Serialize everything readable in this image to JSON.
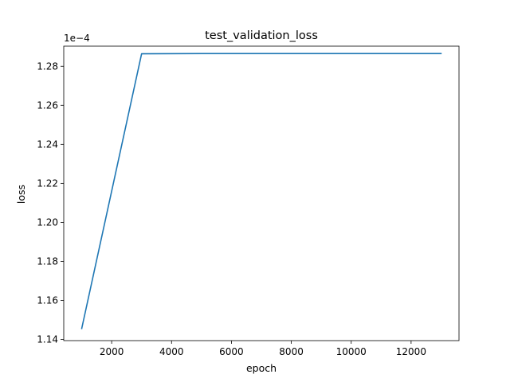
{
  "chart_data": {
    "type": "line",
    "title": "test_validation_loss",
    "xlabel": "epoch",
    "ylabel": "loss",
    "y_offset_label": "1e−4",
    "xlim": [
      400,
      13600
    ],
    "ylim": [
      1.1394,
      1.2903
    ],
    "x_ticks": [
      2000,
      4000,
      6000,
      8000,
      10000,
      12000
    ],
    "x_tick_labels": [
      "2000",
      "4000",
      "6000",
      "8000",
      "10000",
      "12000"
    ],
    "y_ticks": [
      1.14,
      1.16,
      1.18,
      1.2,
      1.22,
      1.24,
      1.26,
      1.28
    ],
    "y_tick_labels": [
      "1.14",
      "1.16",
      "1.18",
      "1.20",
      "1.22",
      "1.24",
      "1.26",
      "1.28"
    ],
    "grid": false,
    "series": [
      {
        "color": "#1f77b4",
        "x": [
          1000,
          3000,
          5000,
          7000,
          9000,
          11000,
          13000
        ],
        "y": [
          1.1456,
          1.2864,
          1.2865,
          1.2865,
          1.2865,
          1.2865,
          1.2865
        ]
      }
    ]
  }
}
